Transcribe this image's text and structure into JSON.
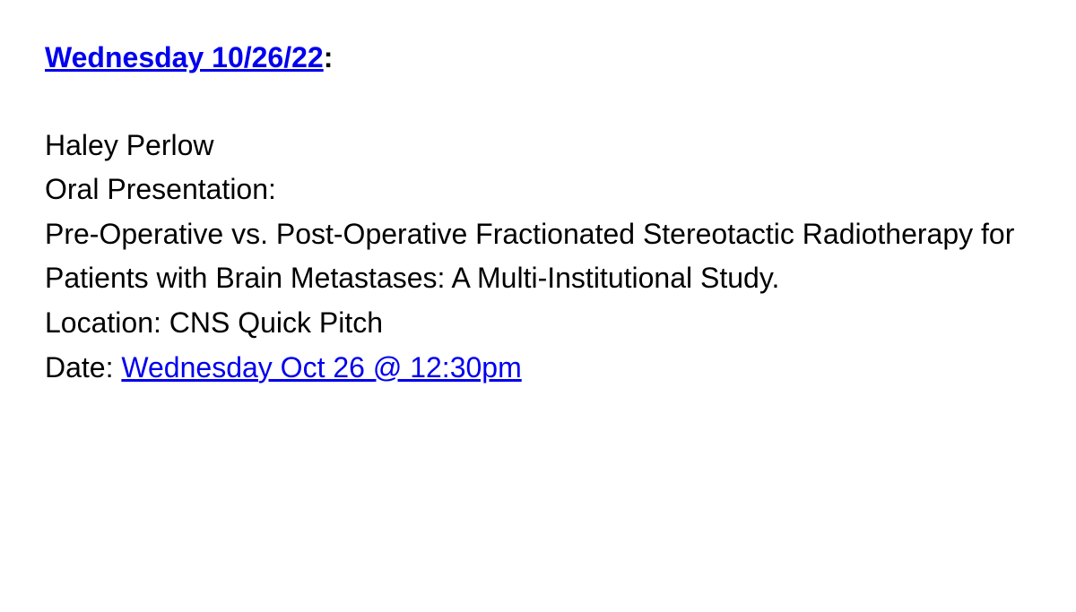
{
  "header": {
    "link_text": "Wednesday 10/26/22",
    "colon": ":"
  },
  "presenter": "Haley Perlow",
  "presentation_type": "Oral Presentation:",
  "title": "Pre-Operative vs. Post-Operative Fractionated Stereotactic Radiotherapy for Patients with Brain Metastases: A Multi-Institutional Study.",
  "location_label": "Location: ",
  "location_value": "CNS Quick Pitch",
  "date_label": "Date: ",
  "date_link_text": "Wednesday Oct 26 @ 12:30pm",
  "colors": {
    "link": "#0000ee",
    "text": "#000000",
    "background": "#ffffff"
  },
  "typography": {
    "font_size": 32,
    "line_height": 1.55,
    "header_weight": "bold"
  }
}
